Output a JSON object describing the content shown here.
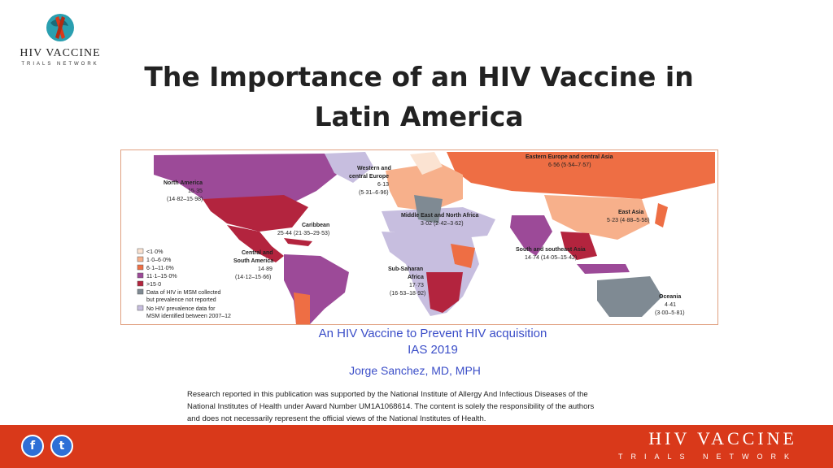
{
  "slide": {
    "title_line1": "The Importance of an HIV Vaccine in",
    "title_line2": "Latin America",
    "talk_title": "An HIV Vaccine to Prevent HIV acquisition",
    "conference": "IAS 2019",
    "author": "Jorge Sanchez, MD, MPH",
    "credit_line1": "Research reported in this publication was supported by the National Institute of Allergy And Infectious Diseases of the",
    "credit_line2": "National Institutes of Health under Award Number UM1A1068614. The content is solely the responsibility of the authors",
    "credit_line3": "and does not necessarily represent the official views of the National Institutes of Health."
  },
  "logo": {
    "name": "HIV VACCINE",
    "sub": "TRIALS NETWORK"
  },
  "footer": {
    "name": "HIV VACCINE",
    "sub": "TRIALS NETWORK",
    "facebook_glyph": "f",
    "twitter_glyph": "t"
  },
  "map": {
    "regions": {
      "north_america": {
        "name": "North America",
        "value": "15·35",
        "ci": "(14·82–15·98)"
      },
      "western_europe": {
        "name1": "Western and",
        "name2": "central Europe",
        "value": "6·13",
        "ci": "(5·31–6·96)"
      },
      "eastern_europe": {
        "name": "Eastern Europe and central Asia",
        "value": "6·56 (5·54–7·57)"
      },
      "caribbean": {
        "name": "Caribbean",
        "value": "25·44 (21·35–29·53)"
      },
      "mena": {
        "name": "Middle East and North Africa",
        "value": "3·02 (2·42–3·62)"
      },
      "east_asia": {
        "name": "East Asia",
        "value": "5·23 (4·88–5·58)"
      },
      "central_south_america": {
        "name1": "Central and",
        "name2": "South America",
        "value": "14·89",
        "ci": "(14·12–15·66)"
      },
      "south_east_asia": {
        "name": "South and southeast Asia",
        "value": "14·74 (14·05–15·42)"
      },
      "ssa": {
        "name1": "Sub-Saharan",
        "name2": "Africa",
        "value": "17·73",
        "ci": "(16·53–18·92)"
      },
      "oceania": {
        "name": "Oceania",
        "value": "4·41",
        "ci": "(3·00–5·81)"
      }
    },
    "legend": [
      {
        "label": "<1·0%",
        "color": "#fbe3d2"
      },
      {
        "label": "1·0–6·0%",
        "color": "#f7b08b"
      },
      {
        "label": "6·1–11·0%",
        "color": "#ee6e44"
      },
      {
        "label": "11·1–15·0%",
        "color": "#9c4a98"
      },
      {
        "label": ">15·0",
        "color": "#b3243e"
      },
      {
        "label": "Data of HIV in MSM collected",
        "label2": "but prevalence not reported",
        "color": "#7f8a93"
      },
      {
        "label": "No HIV prevalence data for",
        "label2": "MSM identified between 2007–12",
        "color": "#c7bedf"
      }
    ]
  }
}
